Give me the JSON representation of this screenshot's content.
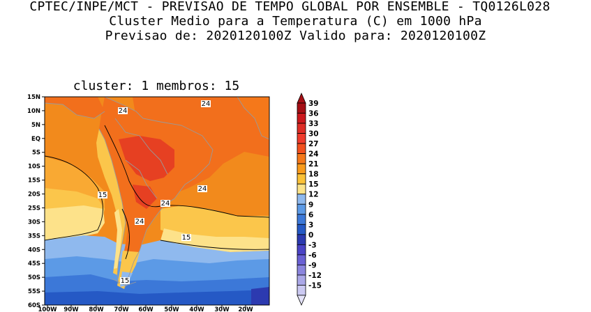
{
  "header": {
    "line1": "CPTEC/INPE/MCT - PREVISAO DE TEMPO GLOBAL POR ENSEMBLE - TQ0126L028",
    "line2": "Cluster Medio para a Temperatura (C) em 1000 hPa",
    "line3": "Previsao de: 2020120100Z   Valido para: 2020120100Z"
  },
  "panel": {
    "subtitle": "cluster: 1  membros: 15"
  },
  "map": {
    "lat_labels": [
      "15N",
      "10N",
      "5N",
      "EQ",
      "5S",
      "10S",
      "15S",
      "20S",
      "25S",
      "30S",
      "35S",
      "40S",
      "45S",
      "50S",
      "55S",
      "60S"
    ],
    "lon_labels": [
      "100W",
      "90W",
      "80W",
      "70W",
      "60W",
      "50W",
      "40W",
      "30W",
      "20W"
    ],
    "contour_labels": [
      "24",
      "24",
      "24",
      "15",
      "24",
      "24",
      "24",
      "15",
      "15"
    ]
  },
  "colorbar": {
    "labels": [
      "39",
      "36",
      "33",
      "30",
      "27",
      "24",
      "21",
      "18",
      "15",
      "12",
      "9",
      "6",
      "3",
      "0",
      "-3",
      "-6",
      "-9",
      "-12",
      "-15"
    ],
    "colors": [
      "#a50f15",
      "#cb181d",
      "#de2d26",
      "#ef3b2c",
      "#f2501e",
      "#f5781a",
      "#f99b1c",
      "#fbc238",
      "#fce38a",
      "#8fb9ee",
      "#5c9ae6",
      "#3c78d8",
      "#2559c5",
      "#2c3ab0",
      "#4b44c6",
      "#6a61d4",
      "#8b85de",
      "#aba8e8",
      "#cbc9f2"
    ]
  }
}
